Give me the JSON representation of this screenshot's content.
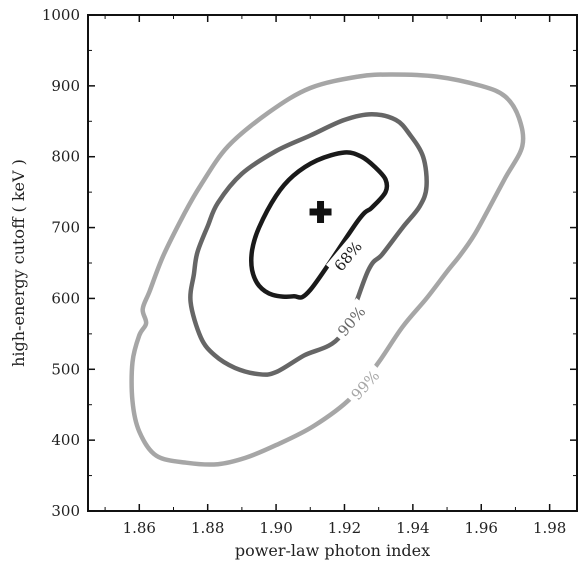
{
  "chart_data": {
    "type": "line",
    "title": "",
    "xlabel": "power-law photon index",
    "ylabel": "high-energy cutoff ( keV )",
    "xlim": [
      1.845,
      1.988
    ],
    "ylim": [
      300,
      1000
    ],
    "xticks": [
      1.86,
      1.88,
      1.9,
      1.92,
      1.94,
      1.96,
      1.98
    ],
    "xtick_labels": [
      "1.86",
      "1.88",
      "1.90",
      "1.92",
      "1.94",
      "1.96",
      "1.98"
    ],
    "yticks": [
      300,
      400,
      500,
      600,
      700,
      800,
      900,
      1000
    ],
    "ytick_labels": [
      "300",
      "400",
      "500",
      "600",
      "700",
      "800",
      "900",
      "1000"
    ],
    "grid": false,
    "best_fit": {
      "x": 1.913,
      "y": 722,
      "marker": "plus"
    },
    "series": [
      {
        "name": "68%",
        "color": "#1a1a1a",
        "label_at": {
          "x": 1.921,
          "y": 660
        },
        "label_rotation": -50,
        "closed": true,
        "points": [
          [
            1.91,
            612
          ],
          [
            1.905,
            603
          ],
          [
            1.899,
            605
          ],
          [
            1.895,
            618
          ],
          [
            1.893,
            640
          ],
          [
            1.893,
            668
          ],
          [
            1.895,
            700
          ],
          [
            1.9,
            745
          ],
          [
            1.905,
            773
          ],
          [
            1.912,
            795
          ],
          [
            1.92,
            806
          ],
          [
            1.925,
            800
          ],
          [
            1.929,
            785
          ],
          [
            1.932,
            768
          ],
          [
            1.932,
            750
          ],
          [
            1.928,
            728
          ],
          [
            1.924,
            710
          ]
        ]
      },
      {
        "name": "90%",
        "color": "#666666",
        "label_at": {
          "x": 1.922,
          "y": 568
        },
        "label_rotation": -50,
        "closed": true,
        "points": [
          [
            1.919,
            548
          ],
          [
            1.908,
            519
          ],
          [
            1.9,
            496
          ],
          [
            1.895,
            493
          ],
          [
            1.888,
            502
          ],
          [
            1.882,
            520
          ],
          [
            1.878,
            545
          ],
          [
            1.875,
            595
          ],
          [
            1.876,
            635
          ],
          [
            1.877,
            665
          ],
          [
            1.88,
            702
          ],
          [
            1.883,
            735
          ],
          [
            1.89,
            776
          ],
          [
            1.9,
            808
          ],
          [
            1.91,
            830
          ],
          [
            1.92,
            852
          ],
          [
            1.928,
            860
          ],
          [
            1.935,
            852
          ],
          [
            1.939,
            832
          ],
          [
            1.943,
            800
          ],
          [
            1.944,
            758
          ],
          [
            1.942,
            730
          ],
          [
            1.937,
            700
          ],
          [
            1.931,
            662
          ],
          [
            1.927,
            640
          ]
        ]
      },
      {
        "name": "99%",
        "color": "#a6a6a6",
        "label_at": {
          "x": 1.926,
          "y": 478
        },
        "label_rotation": -48,
        "closed": true,
        "points": [
          [
            1.922,
            460
          ],
          [
            1.911,
            420
          ],
          [
            1.9,
            393
          ],
          [
            1.891,
            375
          ],
          [
            1.883,
            366
          ],
          [
            1.874,
            368
          ],
          [
            1.865,
            378
          ],
          [
            1.86,
            412
          ],
          [
            1.858,
            455
          ],
          [
            1.858,
            510
          ],
          [
            1.86,
            548
          ],
          [
            1.862,
            565
          ],
          [
            1.861,
            585
          ],
          [
            1.863,
            610
          ],
          [
            1.867,
            660
          ],
          [
            1.873,
            718
          ],
          [
            1.878,
            760
          ],
          [
            1.886,
            815
          ],
          [
            1.898,
            863
          ],
          [
            1.91,
            897
          ],
          [
            1.924,
            913
          ],
          [
            1.934,
            916
          ],
          [
            1.947,
            913
          ],
          [
            1.96,
            900
          ],
          [
            1.967,
            885
          ],
          [
            1.971,
            855
          ],
          [
            1.972,
            815
          ],
          [
            1.967,
            770
          ],
          [
            1.962,
            725
          ],
          [
            1.958,
            690
          ],
          [
            1.954,
            662
          ],
          [
            1.95,
            638
          ],
          [
            1.944,
            600
          ],
          [
            1.937,
            560
          ],
          [
            1.93,
            510
          ]
        ]
      }
    ]
  }
}
